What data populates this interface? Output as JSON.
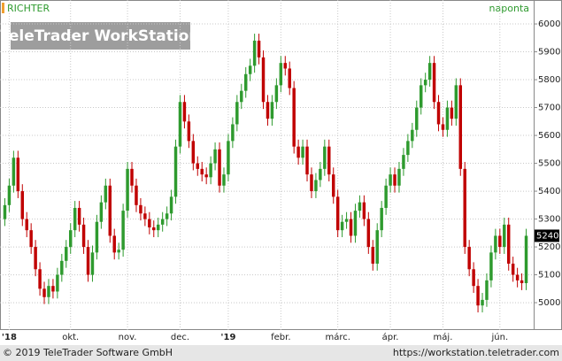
{
  "chart_data": {
    "type": "candlestick",
    "title": "RICHTER",
    "interval": "naponta",
    "watermark": "TeleTrader WorkStation",
    "footer_left": "© 2019 TeleTrader Software GmbH",
    "footer_right": "https://workstation.teletrader.com",
    "up_color": "#2e9a2e",
    "down_color": "#c00000",
    "grid": true,
    "ylim": [
      4905,
      6070
    ],
    "yticks": [
      5000,
      5100,
      5200,
      5300,
      5400,
      5500,
      5600,
      5700,
      5800,
      5900,
      6000
    ],
    "categories": [
      null,
      "'18",
      null,
      null,
      null,
      null,
      null,
      null,
      null,
      null,
      null,
      null,
      null,
      null,
      null,
      "okt.",
      null,
      null,
      null,
      null,
      null,
      null,
      null,
      null,
      null,
      null,
      null,
      null,
      "nov.",
      null,
      null,
      null,
      null,
      null,
      null,
      null,
      null,
      null,
      null,
      null,
      "dec.",
      null,
      null,
      null,
      null,
      null,
      null,
      null,
      null,
      null,
      null,
      "'19",
      null,
      null,
      null,
      null,
      null,
      null,
      null,
      null,
      null,
      null,
      null,
      "febr.",
      null,
      null,
      null,
      null,
      null,
      null,
      null,
      null,
      null,
      null,
      null,
      null,
      "márc.",
      null,
      null,
      null,
      null,
      null,
      null,
      null,
      null,
      null,
      null,
      null,
      "ápr.",
      null,
      null,
      null,
      null,
      null,
      null,
      null,
      null,
      null,
      null,
      null,
      "máj.",
      null,
      null,
      null,
      null,
      null,
      null,
      null,
      null,
      null,
      null,
      null,
      null,
      "jún.",
      null,
      null,
      null,
      null,
      null,
      null
    ],
    "open": [
      5300,
      5350,
      5420,
      5520,
      5400,
      5300,
      5260,
      5200,
      5120,
      5050,
      5020,
      5060,
      5040,
      5100,
      5150,
      5200,
      5260,
      5340,
      5280,
      5200,
      5100,
      5180,
      5290,
      5360,
      5420,
      5240,
      5180,
      5190,
      5330,
      5480,
      5420,
      5350,
      5320,
      5300,
      5270,
      5260,
      5280,
      5300,
      5320,
      5380,
      5560,
      5720,
      5650,
      5580,
      5500,
      5480,
      5460,
      5450,
      5500,
      5550,
      5420,
      5460,
      5580,
      5640,
      5720,
      5760,
      5820,
      5850,
      5940,
      5880,
      5720,
      5660,
      5720,
      5780,
      5860,
      5840,
      5770,
      5560,
      5520,
      5560,
      5460,
      5400,
      5440,
      5480,
      5560,
      5460,
      5380,
      5260,
      5290,
      5300,
      5240,
      5330,
      5360,
      5300,
      5200,
      5140,
      5260,
      5340,
      5420,
      5460,
      5420,
      5480,
      5530,
      5580,
      5620,
      5700,
      5780,
      5800,
      5860,
      5720,
      5640,
      5620,
      5700,
      5660,
      5780,
      5480,
      5200,
      5120,
      5060,
      4990,
      5010,
      5080,
      5180,
      5240,
      5200,
      5280,
      5140,
      5100,
      5080,
      5070
    ],
    "high": [
      5375,
      5445,
      5545,
      5545,
      5425,
      5325,
      5285,
      5225,
      5145,
      5075,
      5085,
      5085,
      5125,
      5175,
      5225,
      5285,
      5365,
      5365,
      5305,
      5225,
      5205,
      5315,
      5385,
      5445,
      5445,
      5265,
      5215,
      5355,
      5505,
      5505,
      5445,
      5375,
      5345,
      5325,
      5295,
      5305,
      5325,
      5345,
      5405,
      5585,
      5745,
      5745,
      5675,
      5605,
      5525,
      5505,
      5485,
      5525,
      5575,
      5575,
      5485,
      5605,
      5665,
      5745,
      5785,
      5845,
      5875,
      5965,
      5965,
      5905,
      5745,
      5745,
      5805,
      5885,
      5885,
      5865,
      5795,
      5585,
      5585,
      5585,
      5485,
      5465,
      5505,
      5585,
      5585,
      5485,
      5405,
      5315,
      5325,
      5325,
      5355,
      5385,
      5385,
      5325,
      5225,
      5285,
      5365,
      5445,
      5485,
      5485,
      5505,
      5555,
      5605,
      5645,
      5725,
      5805,
      5825,
      5885,
      5885,
      5745,
      5665,
      5725,
      5725,
      5805,
      5805,
      5505,
      5225,
      5145,
      5085,
      5035,
      5105,
      5205,
      5265,
      5265,
      5305,
      5305,
      5165,
      5125,
      5105,
      5265
    ],
    "low": [
      5275,
      5325,
      5395,
      5375,
      5275,
      5235,
      5175,
      5095,
      5025,
      4995,
      4995,
      5015,
      5015,
      5075,
      5125,
      5175,
      5235,
      5255,
      5175,
      5075,
      5075,
      5155,
      5265,
      5335,
      5215,
      5155,
      5155,
      5165,
      5305,
      5395,
      5325,
      5295,
      5275,
      5245,
      5235,
      5235,
      5255,
      5275,
      5295,
      5355,
      5535,
      5625,
      5555,
      5475,
      5455,
      5435,
      5425,
      5425,
      5475,
      5395,
      5395,
      5435,
      5555,
      5615,
      5695,
      5735,
      5795,
      5825,
      5855,
      5695,
      5635,
      5635,
      5695,
      5755,
      5815,
      5745,
      5535,
      5495,
      5495,
      5435,
      5375,
      5375,
      5415,
      5455,
      5435,
      5355,
      5235,
      5235,
      5265,
      5215,
      5215,
      5305,
      5275,
      5175,
      5115,
      5115,
      5235,
      5315,
      5395,
      5395,
      5395,
      5455,
      5505,
      5555,
      5595,
      5675,
      5755,
      5775,
      5695,
      5615,
      5595,
      5595,
      5635,
      5635,
      5455,
      5175,
      5095,
      5035,
      4965,
      4965,
      4985,
      5055,
      5155,
      5175,
      5175,
      5115,
      5075,
      5055,
      5045,
      5045
    ],
    "close": [
      5350,
      5420,
      5520,
      5400,
      5300,
      5260,
      5200,
      5120,
      5050,
      5020,
      5060,
      5040,
      5100,
      5150,
      5200,
      5260,
      5340,
      5280,
      5200,
      5100,
      5180,
      5290,
      5360,
      5420,
      5240,
      5180,
      5190,
      5330,
      5480,
      5420,
      5350,
      5320,
      5300,
      5270,
      5260,
      5280,
      5300,
      5320,
      5380,
      5560,
      5720,
      5650,
      5580,
      5500,
      5480,
      5460,
      5450,
      5500,
      5550,
      5420,
      5460,
      5580,
      5640,
      5720,
      5760,
      5820,
      5850,
      5940,
      5880,
      5720,
      5660,
      5720,
      5780,
      5860,
      5840,
      5770,
      5560,
      5520,
      5560,
      5460,
      5400,
      5440,
      5480,
      5560,
      5460,
      5380,
      5260,
      5290,
      5300,
      5240,
      5330,
      5360,
      5300,
      5200,
      5140,
      5260,
      5340,
      5420,
      5460,
      5420,
      5480,
      5530,
      5580,
      5620,
      5700,
      5780,
      5800,
      5860,
      5720,
      5640,
      5620,
      5700,
      5660,
      5780,
      5480,
      5200,
      5120,
      5060,
      4990,
      5010,
      5080,
      5180,
      5240,
      5200,
      5280,
      5140,
      5100,
      5080,
      5070,
      5240
    ]
  }
}
